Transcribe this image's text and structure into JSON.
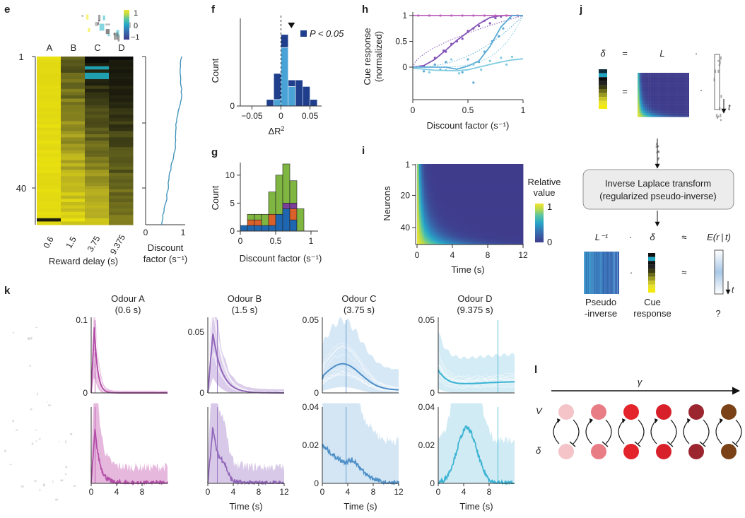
{
  "panel_labels": {
    "e": "e",
    "f": "f",
    "g": "g",
    "h": "h",
    "i": "i",
    "j": "j",
    "k": "k",
    "l": "l"
  },
  "panel_e": {
    "columns": [
      "A",
      "B",
      "C",
      "D"
    ],
    "row_ticks": [
      "1",
      "40"
    ],
    "colorbar_ticks": [
      "1",
      "0",
      "−1"
    ],
    "xticks": [
      "0.6",
      "1.5",
      "3.75",
      "9.375"
    ],
    "xlabel": "Reward delay (s)",
    "side_xticks": [
      "0",
      "1"
    ],
    "side_label_line1": "Discount",
    "side_label_line2": "factor (s⁻¹)",
    "colors": {
      "yellow": "#f3ea0c",
      "cyan": "#22b6c8",
      "line": "#3a8fb7"
    }
  },
  "chart_data": [
    {
      "panel": "f",
      "type": "bar",
      "bin_edges": [
        -0.025,
        -0.0125,
        0.0,
        0.0125,
        0.025,
        0.0375,
        0.05,
        0.0625
      ],
      "significant": [
        1,
        4,
        2,
        1,
        4,
        3,
        1
      ],
      "nonsignificant": [
        0,
        1,
        9,
        3,
        0,
        0,
        0
      ],
      "dashed_line_x": 0.0,
      "marker_x": 0.018,
      "xticks": [
        "−0.05",
        "0",
        "0.05"
      ],
      "xlim": [
        -0.07,
        0.07
      ],
      "yticks": [
        "0"
      ],
      "ylabel": "Count",
      "xlabel": "ΔR",
      "xlabel_sup": "2",
      "legend": "P < 0.05",
      "colors": {
        "sig": "#1f3f8c",
        "nonsig": "#4aa3d6"
      }
    },
    {
      "panel": "g",
      "type": "bar",
      "stacked": true,
      "bin_edges": [
        0,
        0.1,
        0.2,
        0.3,
        0.4,
        0.5,
        0.6,
        0.7,
        0.8,
        0.9
      ],
      "series": [
        {
          "values": [
            1,
            1,
            1,
            1,
            1,
            3,
            4,
            2,
            0
          ],
          "color": "#1f66b0"
        },
        {
          "values": [
            0,
            1,
            1,
            0,
            2,
            0,
            0,
            2,
            0
          ],
          "color": "#d9602a"
        },
        {
          "values": [
            0,
            0,
            0,
            0,
            0,
            0,
            1,
            1,
            0
          ],
          "color": "#7b3f9a"
        },
        {
          "values": [
            0,
            1,
            1,
            2,
            4,
            7,
            7,
            4,
            4
          ],
          "color": "#7fb541"
        }
      ],
      "xticks": [
        "0",
        "0.5",
        "1"
      ],
      "yticks": [
        "0",
        "5",
        "10"
      ],
      "ylim": [
        0,
        12
      ],
      "ylabel": "Count",
      "xlabel": "Discount factor (s⁻¹)"
    },
    {
      "panel": "h",
      "type": "scatter",
      "xlim": [
        0,
        1
      ],
      "ylim": [
        -0.6,
        1
      ],
      "xticks": [
        "0",
        "0.5",
        "1"
      ],
      "yticks": [
        "0",
        "0.5",
        "1"
      ],
      "xlabel": "Discount factor (s⁻¹)",
      "ylabel_line1": "Cue response",
      "ylabel_line2": "(normalized)",
      "series": [
        {
          "color": "#8454b6",
          "dotted_k": 0.6,
          "fit": [
            [
              0,
              0
            ],
            [
              0.1,
              0.03
            ],
            [
              0.2,
              0.15
            ],
            [
              0.3,
              0.33
            ],
            [
              0.4,
              0.52
            ],
            [
              0.5,
              0.68
            ],
            [
              0.6,
              0.84
            ],
            [
              0.7,
              0.96
            ],
            [
              0.8,
              1.0
            ],
            [
              1,
              1.0
            ]
          ],
          "points": [
            [
              0.1,
              0.02
            ],
            [
              0.2,
              0.18
            ],
            [
              0.28,
              0.32
            ],
            [
              0.35,
              0.45
            ],
            [
              0.45,
              0.55
            ],
            [
              0.5,
              0.7
            ],
            [
              0.6,
              0.8
            ],
            [
              0.65,
              0.9
            ],
            [
              0.55,
              0.75
            ],
            [
              0.75,
              0.95
            ],
            [
              0.8,
              0.98
            ],
            [
              0.85,
              1.0
            ],
            [
              0.4,
              0.5
            ],
            [
              0.3,
              0.3
            ],
            [
              0.7,
              0.85
            ]
          ]
        },
        {
          "color": "#bc62bd",
          "dotted_k": 0,
          "fit": [
            [
              0,
              1
            ],
            [
              1,
              1
            ]
          ],
          "points": [
            [
              0.05,
              1
            ],
            [
              0.15,
              1
            ],
            [
              0.25,
              1
            ],
            [
              0.35,
              1
            ],
            [
              0.45,
              1
            ],
            [
              0.55,
              1
            ],
            [
              0.65,
              1
            ],
            [
              0.75,
              1
            ],
            [
              0.85,
              1
            ],
            [
              0.95,
              1
            ]
          ]
        },
        {
          "color": "#5aaad6",
          "dotted_k": 2.2,
          "fit": [
            [
              0,
              0
            ],
            [
              0.2,
              0
            ],
            [
              0.3,
              0.0
            ],
            [
              0.4,
              -0.04
            ],
            [
              0.5,
              0.02
            ],
            [
              0.6,
              0.12
            ],
            [
              0.7,
              0.4
            ],
            [
              0.8,
              0.78
            ],
            [
              0.9,
              1.0
            ],
            [
              1,
              1.0
            ]
          ],
          "points": [
            [
              0.1,
              -0.08
            ],
            [
              0.25,
              -0.05
            ],
            [
              0.3,
              0.1
            ],
            [
              0.45,
              -0.1
            ],
            [
              0.5,
              0.15
            ],
            [
              0.6,
              0.1
            ],
            [
              0.65,
              0.3
            ],
            [
              0.72,
              0.5
            ],
            [
              0.78,
              0.6
            ],
            [
              0.82,
              0.75
            ],
            [
              0.88,
              0.95
            ],
            [
              0.55,
              -0.3
            ],
            [
              0.2,
              0.05
            ]
          ]
        },
        {
          "color": "#7fcbe0",
          "dotted_k": 4.5,
          "fit": [
            [
              0,
              -0.02
            ],
            [
              0.2,
              -0.06
            ],
            [
              0.4,
              -0.07
            ],
            [
              0.5,
              -0.05
            ],
            [
              0.6,
              0.0
            ],
            [
              0.7,
              0.05
            ],
            [
              0.8,
              0.1
            ],
            [
              0.9,
              0.14
            ],
            [
              1,
              0.16
            ]
          ],
          "points": [
            [
              0.05,
              0.0
            ],
            [
              0.15,
              -0.1
            ],
            [
              0.3,
              -0.06
            ],
            [
              0.42,
              -0.12
            ],
            [
              0.55,
              0.05
            ],
            [
              0.62,
              -0.05
            ],
            [
              0.7,
              0.12
            ],
            [
              0.8,
              0.18
            ],
            [
              0.9,
              0.2
            ],
            [
              0.85,
              0.05
            ],
            [
              0.35,
              0.15
            ]
          ]
        }
      ]
    },
    {
      "panel": "i",
      "type": "heatmap",
      "xlim": [
        0,
        12
      ],
      "xticks": [
        "0",
        "4",
        "8",
        "12"
      ],
      "yticks": [
        "1",
        "20",
        "40"
      ],
      "xlabel": "Time (s)",
      "ylabel": "Neurons",
      "colorbar_title_line1": "Relative",
      "colorbar_title_line2": "value",
      "colorbar_ticks": [
        "1",
        "0"
      ],
      "colormap": [
        "#3f3c8c",
        "#3574b3",
        "#26a6c8",
        "#5cc6a0",
        "#b9d94a",
        "#f2e432"
      ]
    },
    {
      "panel": "k",
      "type": "line",
      "odours": [
        {
          "title": "Odour A",
          "delay_label": "(0.6 s)",
          "delay": 0.6,
          "color": "#b44da8",
          "light": "#e3b0da",
          "top_yticks": [
            "0.1",
            "0"
          ],
          "top_ymax": 0.1,
          "top_peak": 0.09,
          "top_peak_t": 0.5,
          "top_decay": 0.5,
          "bottom_peak": 0.028,
          "bottom_peak_t": 0.6
        },
        {
          "title": "Odour B",
          "delay_label": "(1.5 s)",
          "delay": 1.5,
          "color": "#9166b9",
          "light": "#d4c3e6",
          "top_yticks": [
            "0.05",
            "0"
          ],
          "top_ymax": 0.06,
          "top_peak": 0.049,
          "top_peak_t": 0.8,
          "top_decay": 1.4,
          "bottom_peak": 0.03,
          "bottom_peak_t": 0.8,
          "bottom_xticks": [
            "0",
            "4",
            "8",
            "12"
          ],
          "bottom_xlabel": "Time (s)"
        },
        {
          "title": "Odour C",
          "delay_label": "(3.75 s)",
          "delay": 3.75,
          "color": "#4e8fc8",
          "light": "#cfe3f3",
          "top_yticks": [
            "0.05",
            "0"
          ],
          "top_ymax": 0.05,
          "top_peak": 0.018,
          "top_peak_t": 3.2,
          "top_decay": 4.0,
          "bottom_peak": 0.02,
          "bottom_peak_t": 0.6,
          "bottom_yticks": [
            "0.04",
            "0.02",
            "0"
          ],
          "bottom_xticks": [
            "0",
            "4",
            "8",
            "12"
          ],
          "bottom_xlabel": "Time (s)"
        },
        {
          "title": "Odour D",
          "delay_label": "(9.375 s)",
          "delay": 9.375,
          "color": "#3ab3d3",
          "light": "#cce9f3",
          "top_yticks": [
            "0.05",
            "0"
          ],
          "top_ymax": 0.05,
          "top_peak": 0.016,
          "top_peak_t": 0.5,
          "top_decay": 1.6,
          "bottom_peak": 0.029,
          "bottom_peak_t": 4.5,
          "bottom_yticks": [
            "0.04",
            "0.02",
            "0"
          ],
          "bottom_xticks": [
            "0",
            "4",
            "8"
          ],
          "bottom_xlabel": "Time (s)"
        }
      ],
      "panel_a_bottom_xticks": [
        "0",
        "4",
        "8"
      ]
    }
  ],
  "panel_j": {
    "eq1_delta": "δ",
    "eq1_equals": "=",
    "eq1_L": "L",
    "eq1_dot": "·",
    "t_label": "t",
    "box_line1": "Inverse Laplace transform",
    "box_line2": "(regularized pseudo-inverse)",
    "Linv": "L⁻¹",
    "delta": "δ",
    "approx": "≈",
    "E": "E(r | t)",
    "cap_pseudo1": "Pseudo",
    "cap_pseudo2": "-inverse",
    "cap_cue1": "Cue",
    "cap_cue2": "response",
    "cap_q": "?"
  },
  "panel_l": {
    "gamma": "γ",
    "V": "V",
    "delta": "δ",
    "node_colors": [
      "#f4c4c8",
      "#e97d86",
      "#e3242b",
      "#d7202a",
      "#9c2630",
      "#7a4216"
    ]
  }
}
